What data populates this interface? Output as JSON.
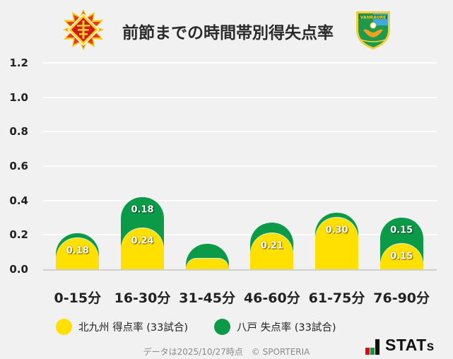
{
  "header": {
    "title": "前節までの時間帯別得失点率",
    "home_logo": "kitakyushu-emblem",
    "away_logo": "hachinohe-emblem"
  },
  "chart_data": {
    "type": "bar",
    "stacked": true,
    "title": "前節までの時間帯別得失点率",
    "xlabel": "",
    "ylabel": "",
    "ylim": [
      0,
      1.2
    ],
    "yticks": [
      "1.2",
      "1.0",
      "0.8",
      "0.6",
      "0.4",
      "0.2",
      "0.0"
    ],
    "grid": true,
    "legend_position": "bottom",
    "categories": [
      "0-15分",
      "16-30分",
      "31-45分",
      "46-60分",
      "61-75分",
      "76-90分"
    ],
    "series": [
      {
        "name": "北九州 得点率 (33試合)",
        "color": "#ffe000",
        "values": [
          0.18,
          0.24,
          0.06,
          0.21,
          0.3,
          0.15
        ],
        "labels": [
          "0.18",
          "0.24",
          null,
          "0.21",
          "0.30",
          "0.15"
        ]
      },
      {
        "name": "八戸 失点率 (33試合)",
        "color": "#0a9a48",
        "values": [
          0.03,
          0.18,
          0.09,
          0.06,
          0.03,
          0.15
        ],
        "labels": [
          null,
          "0.18",
          null,
          null,
          null,
          "0.15"
        ]
      }
    ]
  },
  "legend": {
    "home": {
      "label": "北九州 得点率 (33試合)",
      "color": "#ffe000"
    },
    "away": {
      "label": "八戸 失点率 (33試合)",
      "color": "#0a9a48"
    }
  },
  "footer": {
    "note": "データは2025/10/27時点　© SPORTERIA",
    "brand_main": "STAT",
    "brand_tail": "s",
    "brand_colors": [
      "#e60012",
      "#0a9a48",
      "#111111"
    ]
  }
}
